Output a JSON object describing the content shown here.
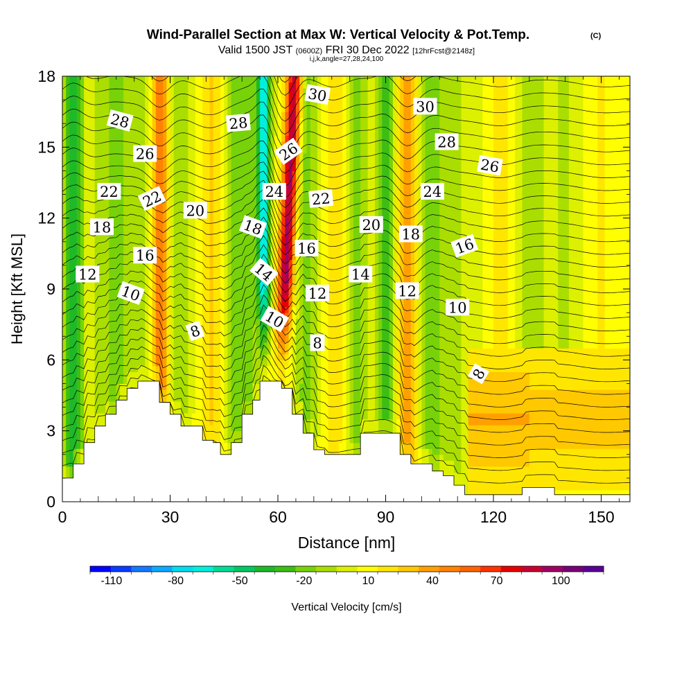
{
  "chart_data": {
    "type": "heatmap",
    "title": "Wind-Parallel Section at Max W: Vertical Velocity & Pot.Temp.",
    "copyright": "(C)",
    "subtitle": {
      "a": "Valid 1500 JST",
      "b": "(0600Z)",
      "c": "FRI 30 Dec 2022",
      "d": "[12hrFcst@2148z]"
    },
    "subtitle2": "i,j,k,angle=27,28,24,100",
    "xlabel": "Distance [nm]",
    "ylabel": "Height [Kft MSL]",
    "xlim": [
      0,
      158
    ],
    "ylim": [
      0,
      18
    ],
    "x_ticks": [
      0,
      30,
      60,
      90,
      120,
      150
    ],
    "y_ticks": [
      0,
      3,
      6,
      9,
      12,
      15,
      18
    ],
    "colorbar": {
      "label": "Vertical Velocity [cm/s]",
      "min": -120,
      "max": 120,
      "tick_labels": [
        "-110",
        "-80",
        "-50",
        "-20",
        "10",
        "40",
        "70",
        "100"
      ],
      "tick_values": [
        -110,
        -80,
        -50,
        -20,
        10,
        40,
        70,
        100
      ],
      "colors": [
        "#0000ff",
        "#0a3cff",
        "#1478ff",
        "#0aaaff",
        "#00dcf0",
        "#00f0dc",
        "#00dc96",
        "#00c864",
        "#1eb928",
        "#3cbe14",
        "#78d20a",
        "#aade00",
        "#dcf000",
        "#ffff00",
        "#ffe600",
        "#ffc800",
        "#ffa000",
        "#ff8200",
        "#ff6400",
        "#ff3200",
        "#e60000",
        "#c80032",
        "#a00064",
        "#780078",
        "#5a0096"
      ]
    },
    "terrain": [
      [
        0,
        1
      ],
      [
        3,
        1
      ],
      [
        3,
        1.6
      ],
      [
        6,
        1.6
      ],
      [
        6,
        2.5
      ],
      [
        9,
        2.5
      ],
      [
        9,
        3.2
      ],
      [
        12,
        3.2
      ],
      [
        12,
        3.7
      ],
      [
        15,
        3.7
      ],
      [
        15,
        4.3
      ],
      [
        18,
        4.3
      ],
      [
        18,
        4.8
      ],
      [
        21,
        4.8
      ],
      [
        21,
        5.1
      ],
      [
        24,
        5.1
      ],
      [
        24,
        5.1
      ],
      [
        27,
        5.1
      ],
      [
        27,
        4.2
      ],
      [
        30,
        4.2
      ],
      [
        30,
        3.7
      ],
      [
        33,
        3.7
      ],
      [
        33,
        3.2
      ],
      [
        36,
        3.2
      ],
      [
        36,
        3.2
      ],
      [
        39,
        3.2
      ],
      [
        39,
        2.6
      ],
      [
        42,
        2.6
      ],
      [
        42,
        2.5
      ],
      [
        44,
        2.5
      ],
      [
        44,
        2
      ],
      [
        47,
        2
      ],
      [
        47,
        2.5
      ],
      [
        50,
        2.5
      ],
      [
        50,
        3.7
      ],
      [
        53,
        3.7
      ],
      [
        53,
        4.3
      ],
      [
        55,
        4.3
      ],
      [
        55,
        5.1
      ],
      [
        58,
        5.1
      ],
      [
        58,
        5.1
      ],
      [
        61,
        5.1
      ],
      [
        61,
        4.8
      ],
      [
        64,
        4.8
      ],
      [
        64,
        3.7
      ],
      [
        67,
        3.7
      ],
      [
        67,
        2.9
      ],
      [
        70,
        2.9
      ],
      [
        70,
        2.2
      ],
      [
        73,
        2.2
      ],
      [
        73,
        2
      ],
      [
        76,
        2
      ],
      [
        76,
        2
      ],
      [
        80,
        2
      ],
      [
        80,
        2
      ],
      [
        83,
        2
      ],
      [
        83,
        2.9
      ],
      [
        87,
        2.9
      ],
      [
        87,
        2.9
      ],
      [
        91,
        2.9
      ],
      [
        91,
        2.9
      ],
      [
        94,
        2.9
      ],
      [
        94,
        2
      ],
      [
        97,
        2
      ],
      [
        97,
        1.6
      ],
      [
        100,
        1.6
      ],
      [
        100,
        1.6
      ],
      [
        103,
        1.6
      ],
      [
        103,
        1.3
      ],
      [
        106,
        1.3
      ],
      [
        106,
        1.1
      ],
      [
        109,
        1.1
      ],
      [
        109,
        0.7
      ],
      [
        112,
        0.7
      ],
      [
        112,
        0.3
      ],
      [
        115,
        0.3
      ],
      [
        115,
        0.3
      ],
      [
        118,
        0.3
      ],
      [
        118,
        0.3
      ],
      [
        125,
        0.3
      ],
      [
        125,
        0.3
      ],
      [
        128,
        0.3
      ],
      [
        128,
        0.6
      ],
      [
        137,
        0.6
      ],
      [
        137,
        0.3
      ],
      [
        142,
        0.3
      ],
      [
        142,
        0.3
      ],
      [
        152,
        0.3
      ],
      [
        152,
        0.3
      ],
      [
        158,
        0.3
      ]
    ],
    "vertical_velocity_features": [
      {
        "x": 3,
        "width": 2.5,
        "value": -50
      },
      {
        "x": 10,
        "width": 3,
        "value": -10
      },
      {
        "x": 15,
        "width": 3,
        "value": -25
      },
      {
        "x": 22,
        "width": 3,
        "value": -20
      },
      {
        "x": 27,
        "width": 2.5,
        "value": 45
      },
      {
        "x": 33,
        "width": 3,
        "value": -20
      },
      {
        "x": 42,
        "width": 4,
        "value": 20
      },
      {
        "x": 48,
        "width": 3,
        "value": -25
      },
      {
        "x": 52,
        "width": 2,
        "value": -20
      },
      {
        "x": 56,
        "width": 1.8,
        "value": -75
      },
      {
        "x": 62,
        "width": 2.2,
        "value": 90
      },
      {
        "x": 68,
        "width": 3,
        "value": -25
      },
      {
        "x": 76,
        "width": 4,
        "value": 15
      },
      {
        "x": 82,
        "width": 3,
        "value": -25
      },
      {
        "x": 90,
        "width": 2.5,
        "value": -35
      },
      {
        "x": 96,
        "width": 2.5,
        "value": 40
      },
      {
        "x": 103,
        "width": 3,
        "value": -25
      },
      {
        "x": 110,
        "width": 5,
        "value": -10
      },
      {
        "x": 123,
        "width": 4,
        "value": 15
      },
      {
        "x": 130,
        "width": 5,
        "value": -15
      },
      {
        "x": 140,
        "width": 5,
        "value": -10
      },
      {
        "x": 150,
        "width": 5,
        "value": 10
      }
    ],
    "contour_labels": [
      {
        "text": "28",
        "x": 16,
        "y": 16.1,
        "angle": 15
      },
      {
        "text": "28",
        "x": 49,
        "y": 16.0,
        "angle": -5
      },
      {
        "text": "30",
        "x": 71,
        "y": 17.2,
        "angle": 10
      },
      {
        "text": "30",
        "x": 101,
        "y": 16.7,
        "angle": 0
      },
      {
        "text": "28",
        "x": 107,
        "y": 15.2,
        "angle": 0
      },
      {
        "text": "26",
        "x": 23,
        "y": 14.7,
        "angle": 0
      },
      {
        "text": "26",
        "x": 63,
        "y": 14.8,
        "angle": -35
      },
      {
        "text": "26",
        "x": 119,
        "y": 14.2,
        "angle": 10
      },
      {
        "text": "22",
        "x": 13,
        "y": 13.1,
        "angle": 0
      },
      {
        "text": "22",
        "x": 25,
        "y": 12.8,
        "angle": -25
      },
      {
        "text": "24",
        "x": 59,
        "y": 13.1,
        "angle": 0
      },
      {
        "text": "22",
        "x": 72,
        "y": 12.8,
        "angle": -5
      },
      {
        "text": "24",
        "x": 103,
        "y": 13.1,
        "angle": 0
      },
      {
        "text": "20",
        "x": 37,
        "y": 12.3,
        "angle": 0
      },
      {
        "text": "18",
        "x": 11,
        "y": 11.6,
        "angle": 0
      },
      {
        "text": "18",
        "x": 53,
        "y": 11.6,
        "angle": 20
      },
      {
        "text": "20",
        "x": 86,
        "y": 11.7,
        "angle": 0
      },
      {
        "text": "18",
        "x": 97,
        "y": 11.3,
        "angle": 0
      },
      {
        "text": "16",
        "x": 23,
        "y": 10.4,
        "angle": 0
      },
      {
        "text": "16",
        "x": 68,
        "y": 10.7,
        "angle": 0
      },
      {
        "text": "16",
        "x": 112,
        "y": 10.8,
        "angle": -20
      },
      {
        "text": "12",
        "x": 7,
        "y": 9.6,
        "angle": 0
      },
      {
        "text": "14",
        "x": 56,
        "y": 9.7,
        "angle": 40
      },
      {
        "text": "14",
        "x": 83,
        "y": 9.6,
        "angle": 0
      },
      {
        "text": "10",
        "x": 19,
        "y": 8.8,
        "angle": 20
      },
      {
        "text": "12",
        "x": 71,
        "y": 8.8,
        "angle": 0
      },
      {
        "text": "12",
        "x": 96,
        "y": 8.9,
        "angle": 0
      },
      {
        "text": "10",
        "x": 110,
        "y": 8.2,
        "angle": 0
      },
      {
        "text": "10",
        "x": 59,
        "y": 7.7,
        "angle": 30
      },
      {
        "text": "8",
        "x": 37,
        "y": 7.2,
        "angle": -20
      },
      {
        "text": "8",
        "x": 71,
        "y": 6.7,
        "angle": 0
      },
      {
        "text": "8",
        "x": 116,
        "y": 5.4,
        "angle": -60
      }
    ]
  }
}
